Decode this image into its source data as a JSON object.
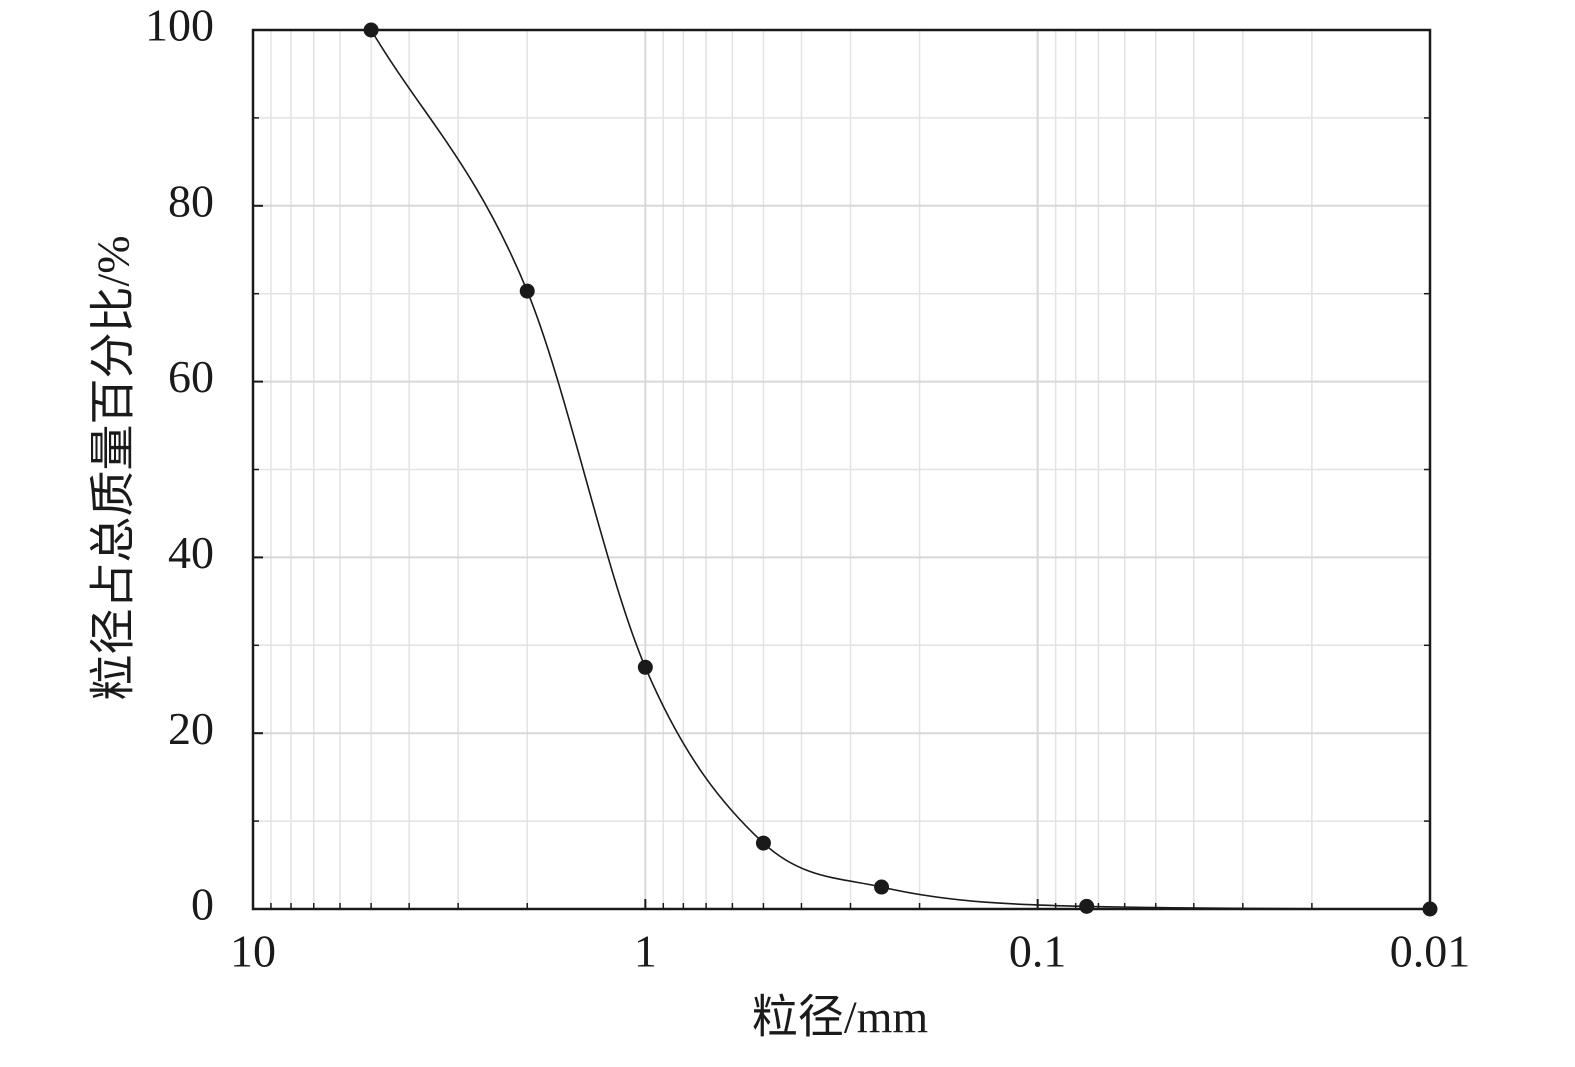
{
  "chart_data": {
    "type": "line",
    "x_label": "粒径/mm",
    "y_label": "粒径占总质量百分比/%",
    "x": [
      5,
      2,
      1,
      0.5,
      0.25,
      0.075,
      0.01
    ],
    "series": [
      {
        "color": "#1a1a1a",
        "values": [
          100,
          70.3,
          27.5,
          7.5,
          2.5,
          0.3,
          0
        ]
      }
    ],
    "xlim": [
      10,
      0.01
    ],
    "ylim": [
      0,
      100
    ],
    "xticks": [
      10,
      1,
      0.1,
      0.01
    ],
    "yticks": [
      0,
      20,
      40,
      60,
      80,
      100
    ],
    "xminorticks": [
      9,
      8,
      7,
      6,
      5,
      4,
      3,
      2,
      0.9,
      0.8,
      0.7,
      0.6,
      0.5,
      0.4,
      0.3,
      0.2,
      0.09,
      0.08,
      0.07,
      0.06,
      0.05,
      0.04,
      0.03,
      0.02
    ],
    "yminorticks": [
      10,
      30,
      50,
      70,
      90
    ],
    "xscale": "log",
    "grid": true
  }
}
